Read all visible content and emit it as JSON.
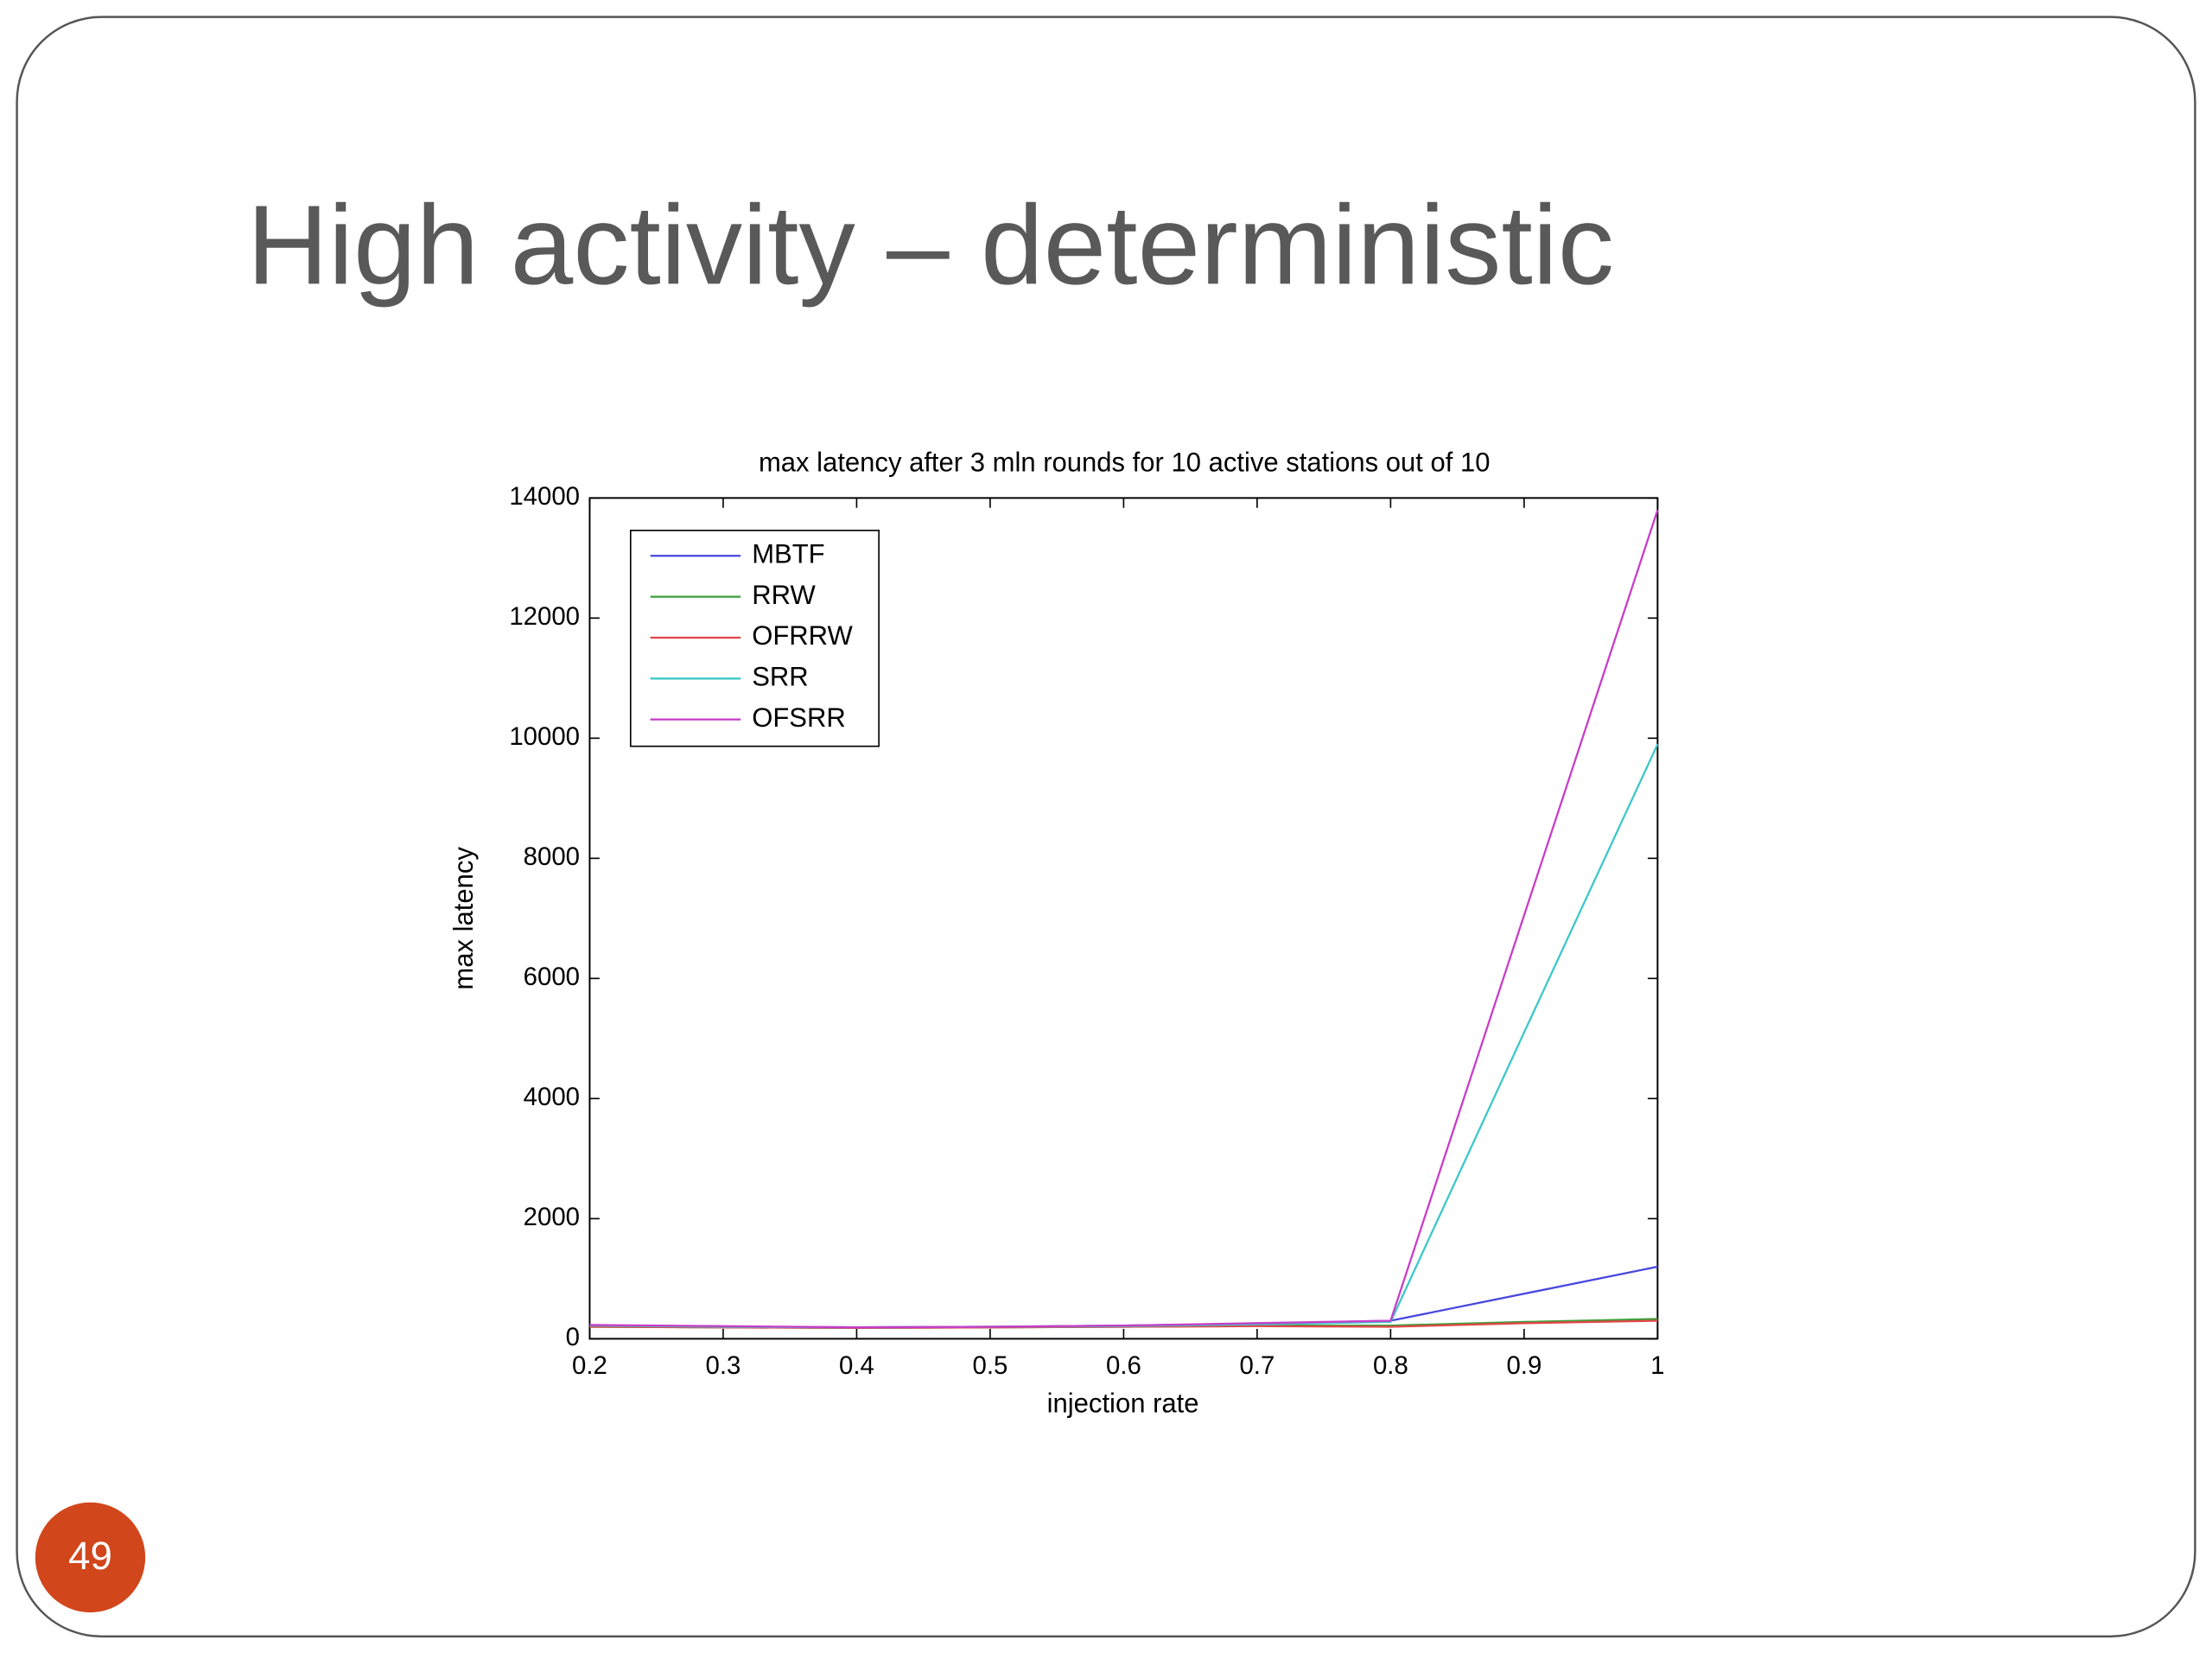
{
  "slide": {
    "title": "High activity – deterministic",
    "page_number": "49"
  },
  "chart_data": {
    "type": "line",
    "title": "max latency after 3 mln rounds for 10 active stations out of 10",
    "xlabel": "injection rate",
    "ylabel": "max latency",
    "x": [
      0.2,
      0.3,
      0.4,
      0.5,
      0.6,
      0.7,
      0.8,
      0.9,
      1
    ],
    "series": [
      {
        "name": "MBTF",
        "color": "#4646e0",
        "values": [
          220,
          200,
          190,
          200,
          220,
          250,
          300,
          750,
          1200
        ]
      },
      {
        "name": "RRW",
        "color": "#3aa03a",
        "values": [
          200,
          190,
          180,
          190,
          200,
          220,
          220,
          280,
          330
        ]
      },
      {
        "name": "OFRRW",
        "color": "#e04646",
        "values": [
          200,
          190,
          180,
          190,
          200,
          210,
          200,
          260,
          300
        ]
      },
      {
        "name": "SRR",
        "color": "#3cc8c8",
        "values": [
          220,
          200,
          190,
          200,
          210,
          240,
          280,
          5100,
          9900
        ]
      },
      {
        "name": "OFSRR",
        "color": "#c83cc8",
        "values": [
          230,
          210,
          190,
          200,
          220,
          260,
          300,
          7050,
          13800
        ]
      }
    ],
    "xlim": [
      0.2,
      1
    ],
    "xticks": [
      0.2,
      0.3,
      0.4,
      0.5,
      0.6,
      0.7,
      0.8,
      0.9,
      1
    ],
    "ylim": [
      0,
      14000
    ],
    "yticks": [
      0,
      2000,
      4000,
      6000,
      8000,
      10000,
      12000,
      14000
    ],
    "grid": false,
    "legend": "northwest"
  }
}
